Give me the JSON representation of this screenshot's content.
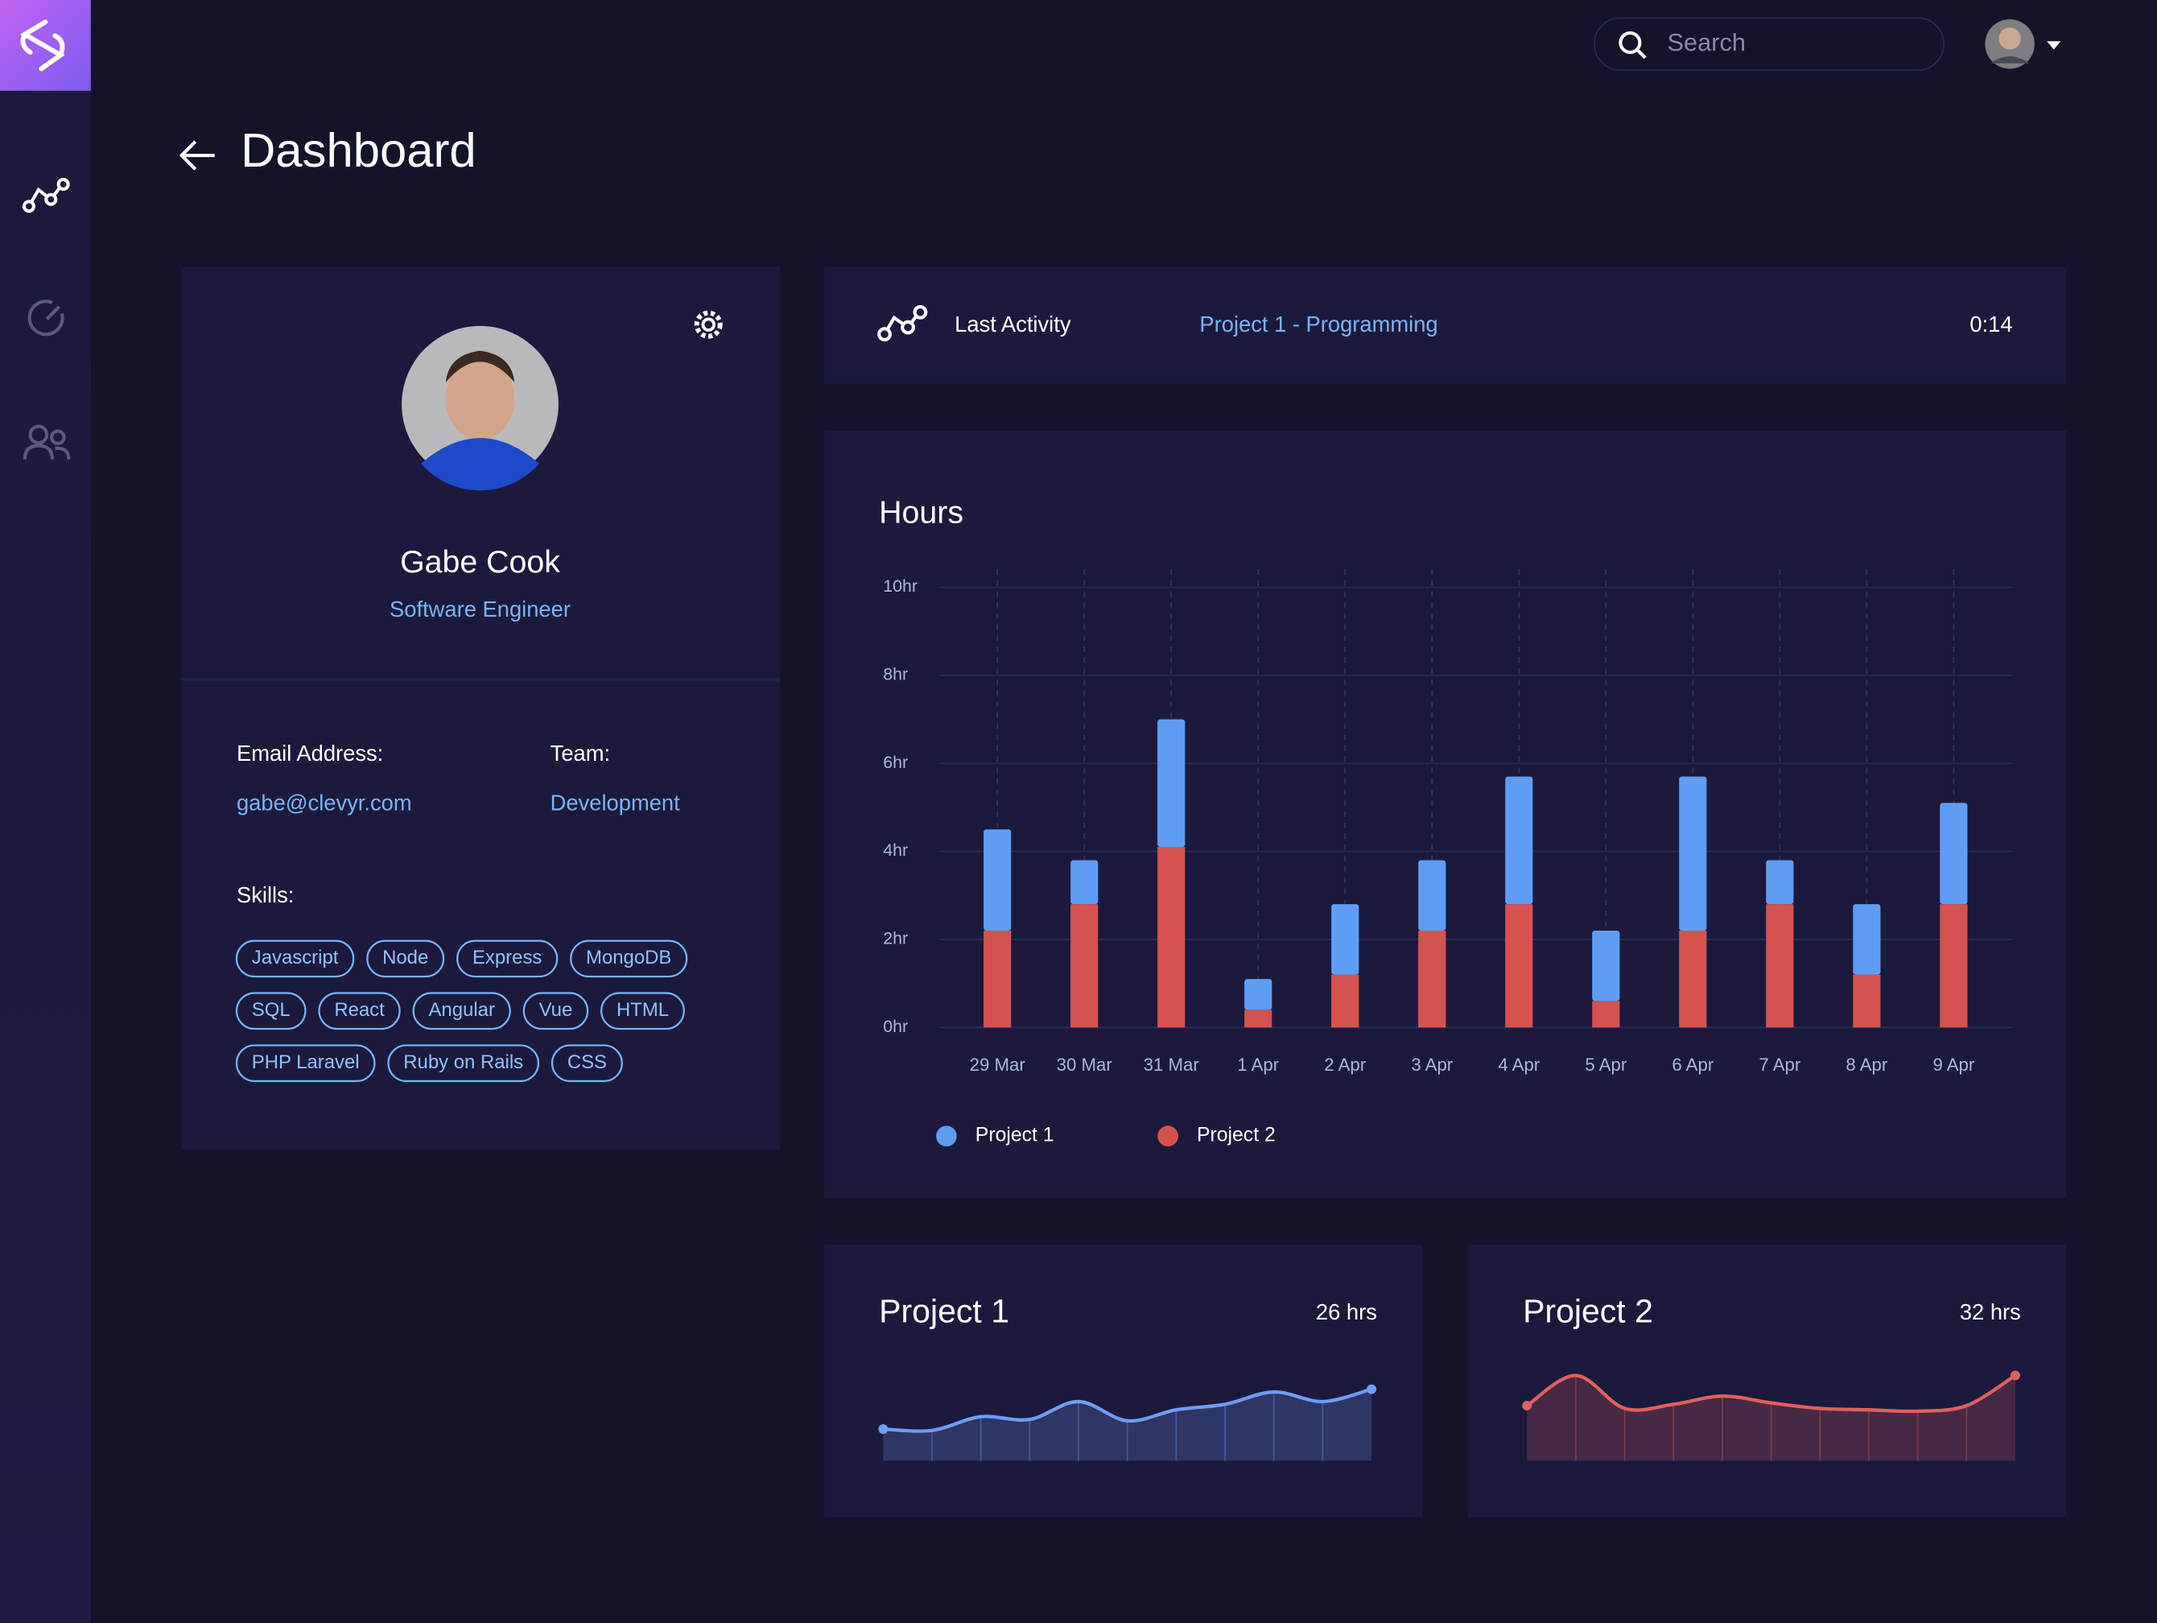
{
  "header": {
    "search_placeholder": "Search"
  },
  "page": {
    "title": "Dashboard"
  },
  "profile": {
    "name": "Gabe Cook",
    "role": "Software Engineer",
    "email_label": "Email Address:",
    "email": "gabe@clevyr.com",
    "team_label": "Team:",
    "team": "Development",
    "skills_label": "Skills:",
    "skills": [
      "Javascript",
      "Node",
      "Express",
      "MongoDB",
      "SQL",
      "React",
      "Angular",
      "Vue",
      "HTML",
      "PHP Laravel",
      "Ruby on Rails",
      "CSS"
    ]
  },
  "activity": {
    "label": "Last Activity",
    "project": "Project 1 - Programming",
    "time": "0:14"
  },
  "chart_data": [
    {
      "type": "bar",
      "title": "Hours",
      "categories": [
        "29 Mar",
        "30 Mar",
        "31 Mar",
        "1 Apr",
        "2 Apr",
        "3 Apr",
        "4 Apr",
        "5 Apr",
        "6 Apr",
        "7 Apr",
        "8 Apr",
        "9 Apr"
      ],
      "series": [
        {
          "name": "Project 1",
          "color": "#5f9df2",
          "values": [
            2.3,
            1.0,
            2.9,
            0.7,
            1.6,
            1.6,
            2.9,
            1.6,
            3.5,
            1.0,
            1.6,
            2.3
          ]
        },
        {
          "name": "Project 2",
          "color": "#d6524f",
          "values": [
            2.2,
            2.8,
            4.1,
            0.4,
            1.2,
            2.2,
            2.8,
            0.6,
            2.2,
            2.8,
            1.2,
            2.8
          ]
        }
      ],
      "ylim": [
        0,
        10
      ],
      "yticks": [
        {
          "value": 0,
          "label": "0hr"
        },
        {
          "value": 2,
          "label": "2hr"
        },
        {
          "value": 4,
          "label": "4hr"
        },
        {
          "value": 6,
          "label": "6hr"
        },
        {
          "value": 8,
          "label": "8hr"
        },
        {
          "value": 10,
          "label": "10hr"
        }
      ],
      "grid": true
    },
    {
      "type": "area",
      "title": "Project 1",
      "total": "26 hrs",
      "color": "#6f9cf5",
      "values": [
        23,
        22,
        32,
        30,
        43,
        29,
        37,
        41,
        50,
        43,
        52
      ],
      "ylim": [
        0,
        72
      ]
    },
    {
      "type": "area",
      "title": "Project 2",
      "total": "32 hrs",
      "color": "#e0605e",
      "values": [
        40,
        62,
        38,
        41,
        47,
        42,
        38,
        37,
        36,
        40,
        62
      ],
      "ylim": [
        0,
        72
      ]
    }
  ]
}
